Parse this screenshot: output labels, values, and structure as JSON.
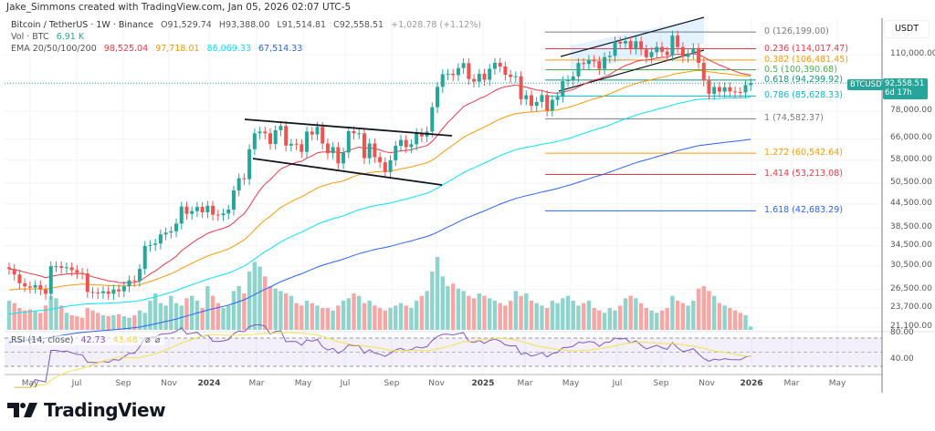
{
  "header": {
    "credit": "Jake_Simmons created with TradingView.com, Jan 05, 2026 02:07 UTC-5"
  },
  "legend": {
    "symbol": "Bitcoin / TetherUS · 1W · Binance",
    "open": "O91,529.74",
    "high": "H93,388.00",
    "low": "L91,514.81",
    "close": "C92,558.51",
    "change": "+1,028.78 (+1.12%)",
    "vol_label": "Vol · BTC",
    "vol_value": "6.91 K",
    "ema_label": "EMA 20/50/100/200",
    "ema_values": [
      "98,525.04",
      "97,718.01",
      "86,069.33",
      "67,514.33"
    ],
    "ema_colors": [
      "#f23645",
      "#ff9800",
      "#00e5ff",
      "#2962ff"
    ]
  },
  "price_axis": {
    "currency": "USDT",
    "ticks": [
      "110,000.00",
      "78,000.00",
      "66,000.00",
      "58,000.00",
      "50,500.00",
      "44,500.00",
      "38,500.00",
      "34,500.00",
      "30,500.00",
      "26,500.00",
      "23,700.00",
      "21,100.00"
    ],
    "tick_values": [
      110000,
      78000,
      66000,
      58000,
      50500,
      44500,
      38500,
      34500,
      30500,
      26500,
      23700,
      21100
    ],
    "last_price": "92,558.51",
    "last_price_value": 92558.51,
    "countdown": "6d 17h",
    "symbol_tag": "BTCUSDT"
  },
  "rsi": {
    "label": "RSI (14, close)",
    "value": "42.73",
    "ma_value": "43.48",
    "axis_ticks": [
      "80.00",
      "40.00"
    ],
    "color": "#7e57c2",
    "ma_color": "#f7e14b"
  },
  "time_axis": {
    "ticks": [
      "May",
      "Jul",
      "Sep",
      "Nov",
      "2024",
      "Mar",
      "May",
      "Jul",
      "Sep",
      "Nov",
      "2025",
      "Mar",
      "May",
      "Jul",
      "Sep",
      "Nov",
      "2026",
      "Mar",
      "May"
    ]
  },
  "fib_levels": [
    {
      "label": "0 (126,199.00)",
      "price": 126199,
      "color": "#787b86"
    },
    {
      "label": "0.236 (114,017.47)",
      "price": 114017.47,
      "color": "#f23645"
    },
    {
      "label": "0.382 (106,481.45)",
      "price": 106481.45,
      "color": "#ff9800"
    },
    {
      "label": "0.5 (100,390.68)",
      "price": 100390.68,
      "color": "#4caf50"
    },
    {
      "label": "0.618 (94,299.92)",
      "price": 94299.92,
      "color": "#089981"
    },
    {
      "label": "0.786 (85,628.33)",
      "price": 85628.33,
      "color": "#00bcd4"
    },
    {
      "label": "1 (74,582.37)",
      "price": 74582.37,
      "color": "#787b86"
    },
    {
      "label": "1.272 (60,542.64)",
      "price": 60542.64,
      "color": "#ff9800"
    },
    {
      "label": "1.414 (53,213.08)",
      "price": 53213.08,
      "color": "#f23645"
    },
    {
      "label": "1.618 (42,683.29)",
      "price": 42683.29,
      "color": "#2962ff"
    }
  ],
  "chart_data": {
    "type": "candlestick",
    "scale": "log",
    "interval": "1W",
    "colors": {
      "up": "#26a69a",
      "down": "#ef5350",
      "vol_up": "#8fd4cc",
      "vol_down": "#f7a6a4"
    },
    "closes": [
      30000,
      29000,
      27500,
      27000,
      26800,
      27200,
      26500,
      25800,
      30500,
      30500,
      30200,
      30300,
      29800,
      29300,
      29200,
      26100,
      26000,
      25900,
      26200,
      25800,
      26500,
      26200,
      27000,
      28000,
      27900,
      30000,
      34500,
      34700,
      35000,
      37000,
      37400,
      37700,
      39500,
      43800,
      41900,
      42600,
      43700,
      42300,
      44000,
      41700,
      41600,
      42000,
      43000,
      48300,
      52000,
      51700,
      62000,
      68300,
      69000,
      68300,
      64000,
      69600,
      71400,
      63400,
      64100,
      63900,
      61000,
      69000,
      67800,
      71000,
      64200,
      60500,
      62800,
      56900,
      60800,
      69200,
      68300,
      68300,
      58700,
      64200,
      59100,
      57300,
      54000,
      58000,
      63300,
      65600,
      62800,
      63900,
      68400,
      67000,
      69000,
      80000,
      90500,
      97700,
      98000,
      97200,
      101400,
      104500,
      94900,
      93400,
      98000,
      94500,
      101000,
      104700,
      102400,
      97400,
      96100,
      96500,
      84000,
      86000,
      80700,
      82600,
      86100,
      78400,
      83600,
      85200,
      93700,
      94300,
      96400,
      104600,
      104000,
      106500,
      105700,
      100900,
      108400,
      109200,
      119000,
      117700,
      119500,
      114200,
      119300,
      113500,
      108300,
      111700,
      115300,
      112000,
      109600,
      123500,
      115200,
      108600,
      110900,
      114500,
      104700,
      94000,
      86800,
      90400,
      87900,
      90300,
      88000,
      87700,
      87500,
      91500,
      92558.51
    ],
    "volumes_k": [
      60,
      55,
      45,
      40,
      42,
      38,
      35,
      50,
      70,
      65,
      50,
      35,
      30,
      28,
      25,
      45,
      40,
      35,
      30,
      28,
      30,
      32,
      28,
      25,
      30,
      40,
      35,
      60,
      75,
      55,
      50,
      70,
      55,
      50,
      65,
      70,
      60,
      45,
      90,
      70,
      55,
      45,
      50,
      80,
      90,
      75,
      120,
      140,
      130,
      110,
      90,
      85,
      80,
      75,
      70,
      55,
      50,
      60,
      55,
      50,
      45,
      45,
      40,
      50,
      60,
      65,
      75,
      70,
      55,
      60,
      50,
      45,
      40,
      45,
      50,
      55,
      50,
      45,
      60,
      70,
      80,
      120,
      150,
      110,
      90,
      95,
      85,
      80,
      70,
      65,
      75,
      70,
      65,
      60,
      55,
      50,
      60,
      80,
      70,
      75,
      60,
      55,
      50,
      45,
      60,
      55,
      65,
      70,
      60,
      50,
      55,
      60,
      45,
      40,
      35,
      45,
      40,
      50,
      65,
      70,
      65,
      55,
      45,
      40,
      35,
      40,
      45,
      70,
      60,
      55,
      50,
      60,
      85,
      90,
      80,
      70,
      55,
      50,
      45,
      40,
      35,
      30,
      6.91
    ],
    "ema_periods": [
      20,
      50,
      100,
      200
    ]
  },
  "brand": {
    "logo_text": "TradingView"
  }
}
